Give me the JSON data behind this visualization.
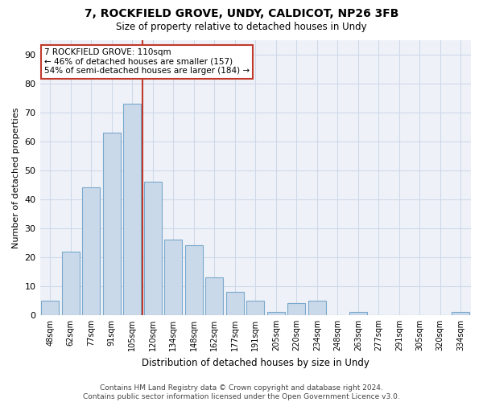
{
  "title1": "7, ROCKFIELD GROVE, UNDY, CALDICOT, NP26 3FB",
  "title2": "Size of property relative to detached houses in Undy",
  "xlabel": "Distribution of detached houses by size in Undy",
  "ylabel": "Number of detached properties",
  "categories": [
    "48sqm",
    "62sqm",
    "77sqm",
    "91sqm",
    "105sqm",
    "120sqm",
    "134sqm",
    "148sqm",
    "162sqm",
    "177sqm",
    "191sqm",
    "205sqm",
    "220sqm",
    "234sqm",
    "248sqm",
    "263sqm",
    "277sqm",
    "291sqm",
    "305sqm",
    "320sqm",
    "334sqm"
  ],
  "values": [
    5,
    22,
    44,
    63,
    73,
    46,
    26,
    24,
    13,
    8,
    5,
    1,
    4,
    5,
    0,
    1,
    0,
    0,
    0,
    0,
    1
  ],
  "bar_color": "#c9d9ea",
  "bar_edge_color": "#7aa8cc",
  "grid_color": "#d0d8e8",
  "background_color": "#eef2f8",
  "vline_color": "#c0392b",
  "annotation_text": "7 ROCKFIELD GROVE: 110sqm\n← 46% of detached houses are smaller (157)\n54% of semi-detached houses are larger (184) →",
  "annotation_box_edge": "#c0392b",
  "ylim": [
    0,
    95
  ],
  "yticks": [
    0,
    10,
    20,
    30,
    40,
    50,
    60,
    70,
    80,
    90
  ],
  "footer": "Contains HM Land Registry data © Crown copyright and database right 2024.\nContains public sector information licensed under the Open Government Licence v3.0."
}
